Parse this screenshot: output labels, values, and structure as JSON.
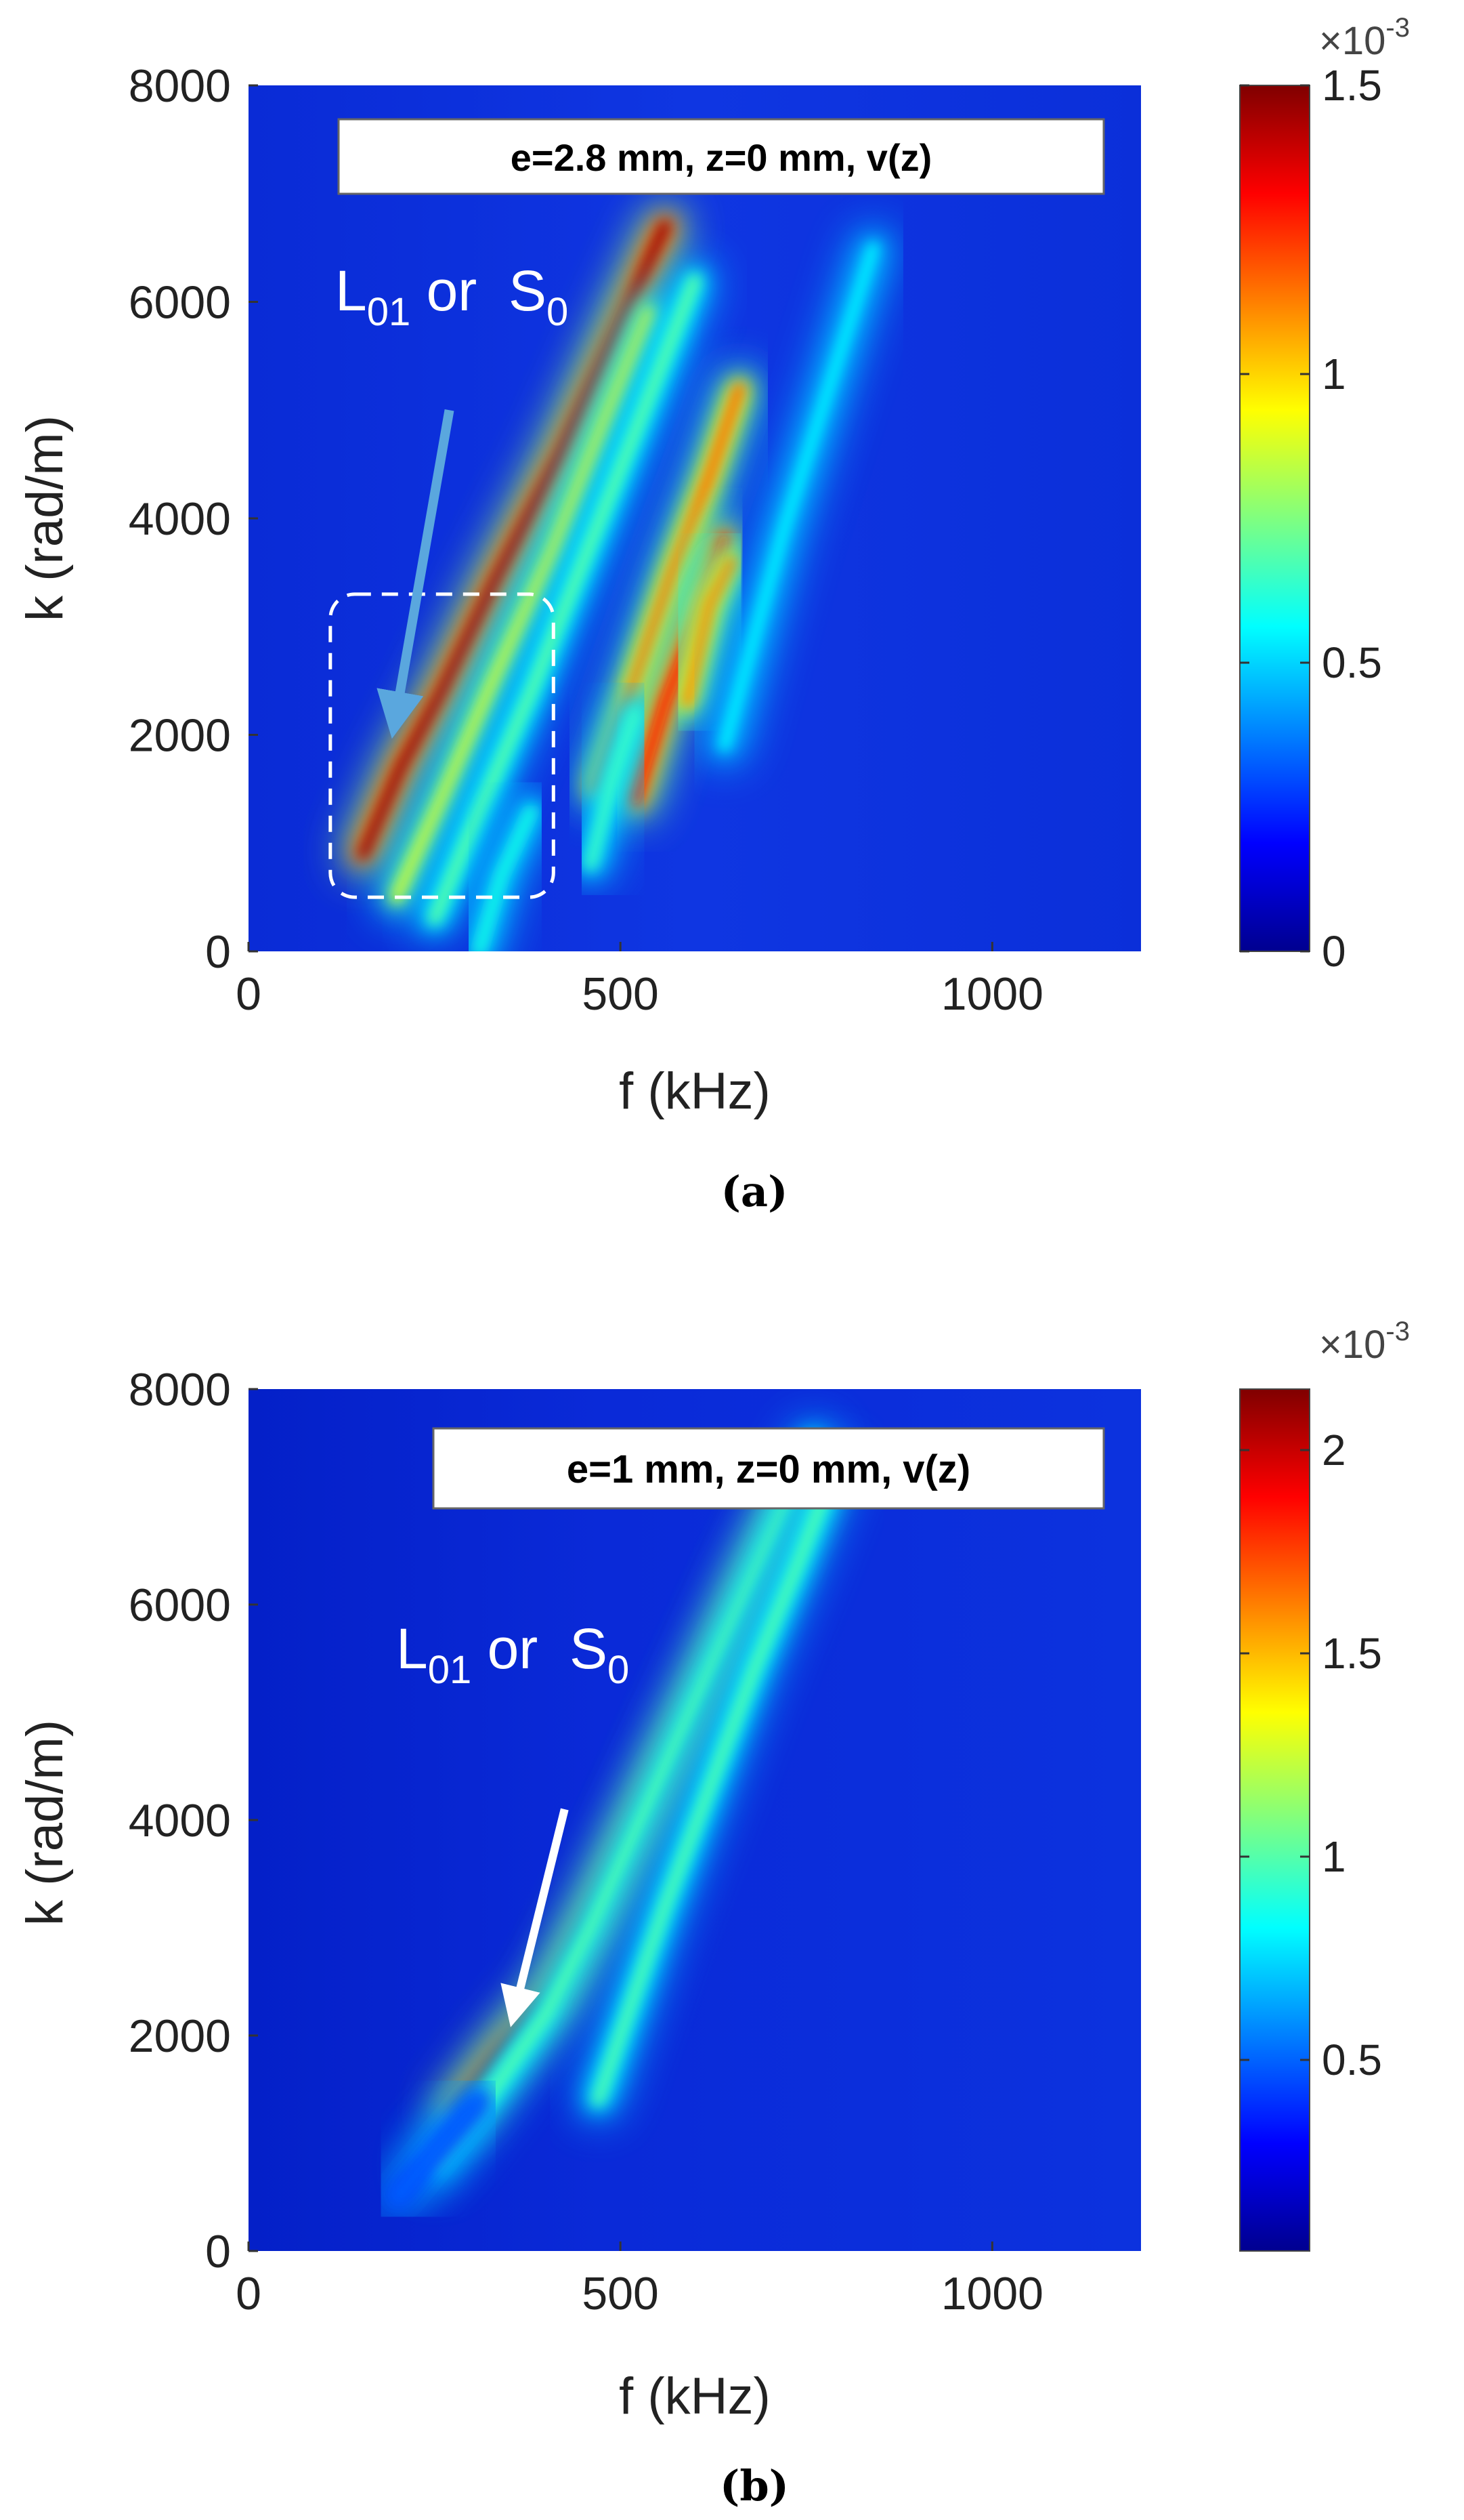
{
  "chart_data": [
    {
      "type": "heatmap",
      "panel_label": "(a)",
      "annotation_box": "e=2.8 mm, z=0 mm, v(z)",
      "mode_label": {
        "main": "L",
        "sub": "01",
        "or": " or  ",
        "main2": "S",
        "sub2": "0"
      },
      "xlabel": "f (kHz)",
      "ylabel": "k (rad/m)",
      "xlim": [
        0,
        1200
      ],
      "ylim": [
        0,
        8000
      ],
      "xticks": [
        0,
        500,
        1000
      ],
      "yticks": [
        0,
        2000,
        4000,
        6000,
        8000
      ],
      "colorbar": {
        "range": [
          0,
          1.5
        ],
        "ticks": [
          0,
          0.5,
          1,
          1.5
        ],
        "tick_labels": [
          "0",
          "0.5",
          "1",
          "1.5"
        ],
        "exponent_label": "×10",
        "exponent_power": "-3",
        "colormap": "jet"
      },
      "dashed_region": {
        "f": [
          110,
          410
        ],
        "k": [
          500,
          3300
        ]
      },
      "arrow": {
        "from": {
          "f": 270,
          "k": 5000
        },
        "to": {
          "f": 195,
          "k": 2050
        },
        "color": "#5aa7de"
      },
      "ridges": [
        {
          "points": [
            [
              155,
              900
            ],
            [
              205,
              1700
            ],
            [
              260,
              2400
            ],
            [
              330,
              3400
            ],
            [
              420,
              4600
            ],
            [
              500,
              5800
            ],
            [
              560,
              6700
            ]
          ],
          "peak": 1.45
        },
        {
          "points": [
            [
              200,
              500
            ],
            [
              260,
              1400
            ],
            [
              330,
              2500
            ],
            [
              410,
              3700
            ],
            [
              480,
              4900
            ],
            [
              540,
              5900
            ]
          ],
          "peak": 0.9
        },
        {
          "points": [
            [
              250,
              300
            ],
            [
              310,
              1300
            ],
            [
              380,
              2400
            ],
            [
              450,
              3600
            ],
            [
              520,
              4800
            ],
            [
              600,
              6200
            ]
          ],
          "peak": 0.7
        },
        {
          "points": [
            [
              470,
              1500
            ],
            [
              520,
              2500
            ],
            [
              570,
              3500
            ],
            [
              620,
              4400
            ],
            [
              660,
              5200
            ]
          ],
          "peak": 1.15
        },
        {
          "points": [
            [
              520,
              1400
            ],
            [
              560,
              2300
            ],
            [
              600,
              3000
            ],
            [
              640,
              3800
            ]
          ],
          "peak": 1.3
        },
        {
          "points": [
            [
              590,
              2300
            ],
            [
              620,
              3200
            ],
            [
              650,
              3600
            ]
          ],
          "peak": 1.1
        },
        {
          "points": [
            [
              640,
              1900
            ],
            [
              680,
              2900
            ],
            [
              720,
              3900
            ],
            [
              780,
              5200
            ],
            [
              840,
              6500
            ]
          ],
          "peak": 0.55
        },
        {
          "points": [
            [
              310,
              0
            ],
            [
              340,
              700
            ],
            [
              380,
              1300
            ]
          ],
          "peak": 0.6
        },
        {
          "points": [
            [
              460,
              800
            ],
            [
              490,
              1600
            ],
            [
              520,
              2200
            ]
          ],
          "peak": 0.65
        }
      ]
    },
    {
      "type": "heatmap",
      "panel_label": "(b)",
      "annotation_box": "e=1 mm,  z=0 mm,  v(z)",
      "mode_label": {
        "main": "L",
        "sub": "01",
        "or": " or  ",
        "main2": "S",
        "sub2": "0"
      },
      "xlabel": "f (kHz)",
      "ylabel": "k (rad/m)",
      "xlim": [
        0,
        1200
      ],
      "ylim": [
        0,
        8000
      ],
      "xticks": [
        0,
        500,
        1000
      ],
      "yticks": [
        0,
        2000,
        4000,
        6000,
        8000
      ],
      "colorbar": {
        "range": [
          0.03,
          2.15
        ],
        "ticks": [
          0.5,
          1,
          1.5,
          2
        ],
        "tick_labels": [
          "0.5",
          "1",
          "1.5",
          "2"
        ],
        "exponent_label": "×10",
        "exponent_power": "-3",
        "colormap": "jet"
      },
      "arrow": {
        "from": {
          "f": 425,
          "k": 4100
        },
        "to": {
          "f": 355,
          "k": 2150
        },
        "color": "#ffffff"
      },
      "ridges": [
        {
          "points": [
            [
              280,
              1300
            ],
            [
              340,
              1850
            ],
            [
              410,
              2400
            ],
            [
              470,
              3200
            ],
            [
              540,
              4200
            ],
            [
              610,
              5200
            ],
            [
              670,
              6100
            ],
            [
              740,
              7100
            ]
          ],
          "peak": 2.1
        },
        {
          "points": [
            [
              250,
              800
            ],
            [
              330,
              1500
            ],
            [
              400,
              2200
            ],
            [
              460,
              3000
            ],
            [
              520,
              3900
            ],
            [
              580,
              4800
            ],
            [
              640,
              5700
            ],
            [
              700,
              6600
            ],
            [
              760,
              7500
            ]
          ],
          "peak": 1.0
        },
        {
          "points": [
            [
              470,
              1400
            ],
            [
              510,
              2200
            ],
            [
              560,
              3200
            ],
            [
              620,
              4300
            ],
            [
              680,
              5400
            ],
            [
              740,
              6400
            ],
            [
              790,
              7300
            ]
          ],
          "peak": 1.0
        },
        {
          "points": [
            [
              200,
              500
            ],
            [
              260,
              1000
            ],
            [
              310,
              1400
            ]
          ],
          "peak": 0.5
        }
      ]
    }
  ]
}
